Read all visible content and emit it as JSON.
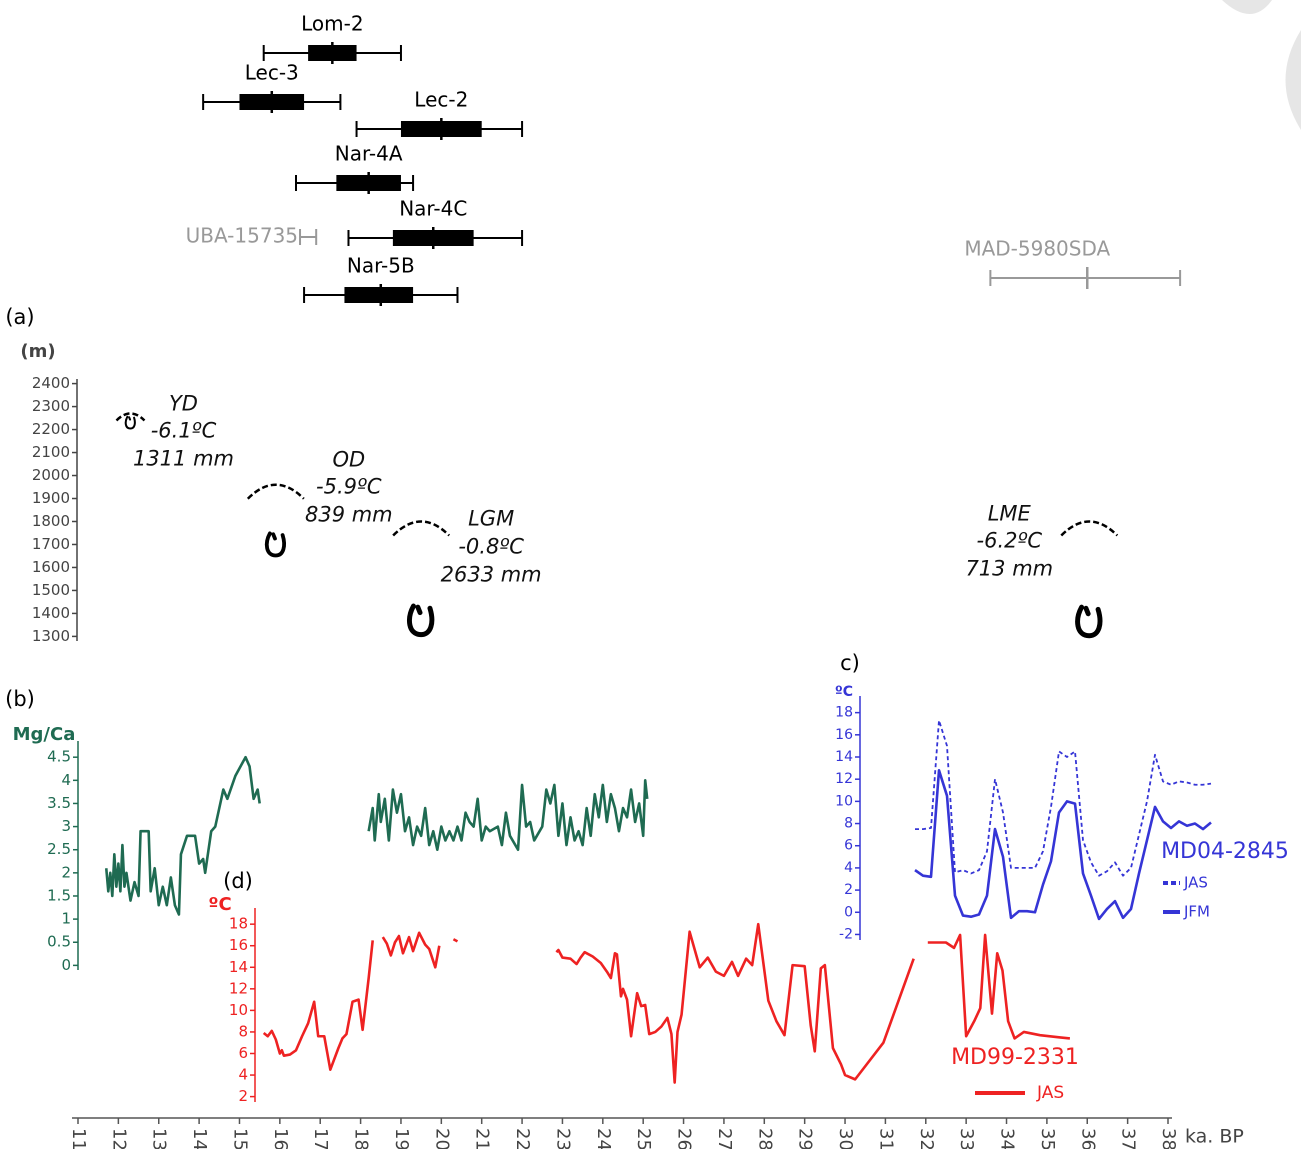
{
  "chart_data": [
    {
      "type": "boxplot",
      "items": [
        {
          "name": "Lom-2",
          "min": 15.6,
          "q1": 16.7,
          "median": 17.3,
          "q3": 17.9,
          "max": 19.0,
          "color": "#000000"
        },
        {
          "name": "Lec-3",
          "min": 14.1,
          "q1": 15.0,
          "median": 15.8,
          "q3": 16.6,
          "max": 17.5,
          "color": "#000000"
        },
        {
          "name": "Lec-2",
          "min": 17.9,
          "q1": 19.0,
          "median": 20.0,
          "q3": 21.0,
          "max": 22.0,
          "color": "#000000"
        },
        {
          "name": "Nar-4A",
          "min": 16.4,
          "q1": 17.4,
          "median": 18.2,
          "q3": 19.0,
          "max": 19.3,
          "color": "#000000"
        },
        {
          "name": "Nar-4C",
          "min": 17.7,
          "q1": 18.8,
          "median": 19.8,
          "q3": 20.8,
          "max": 22.0,
          "color": "#000000"
        },
        {
          "name": "Nar-5B",
          "min": 16.6,
          "q1": 17.6,
          "median": 18.5,
          "q3": 19.3,
          "max": 20.4,
          "color": "#000000"
        },
        {
          "name": "UBA-15735",
          "min": 16.5,
          "max": 16.9,
          "color": "#999999"
        },
        {
          "name": "MAD-5980SDA",
          "min": 33.6,
          "median": 36.0,
          "max": 38.3,
          "color": "#999999"
        }
      ]
    },
    {
      "type": "glacier",
      "label": "(a)",
      "ylabel": "(m)",
      "axis_color": "#444444",
      "ylim": [
        1280,
        2420
      ],
      "yticks": [
        1300,
        1400,
        1500,
        1600,
        1700,
        1800,
        1900,
        2000,
        2100,
        2200,
        2300,
        2400
      ],
      "items": [
        {
          "name": "YD",
          "temp": "-6.1ºC",
          "precip": "1311 mm",
          "age": 12.3,
          "ela": 2270,
          "front": 2230
        },
        {
          "name": "OD",
          "temp": "-5.9ºC",
          "precip": "839 mm",
          "age": 15.9,
          "ela": 1960,
          "front": 1700
        },
        {
          "name": "LGM",
          "temp": "-0.8ºC",
          "precip": "2633 mm",
          "age": 19.5,
          "ela": 1800,
          "front": 1370
        },
        {
          "name": "LME",
          "temp": "-6.2ºC",
          "precip": "713 mm",
          "age": 36.05,
          "ela": 1800,
          "front": 1365
        }
      ]
    },
    {
      "type": "line",
      "label": "(b)",
      "ylabel": "Mg/Ca",
      "axis_color": "#1f6b52",
      "color": "#1f6b52",
      "ylim": [
        -0.1,
        4.85
      ],
      "yticks": [
        0,
        0.5,
        1,
        1.5,
        2,
        2.5,
        3,
        3.5,
        4,
        4.5
      ],
      "x": [
        11.7,
        11.75,
        11.8,
        11.85,
        11.9,
        11.95,
        12.0,
        12.05,
        12.1,
        12.15,
        12.2,
        12.3,
        12.4,
        12.5,
        12.55,
        12.75,
        12.8,
        12.9,
        13.0,
        13.1,
        13.2,
        13.3,
        13.4,
        13.5,
        13.55,
        13.7,
        13.9,
        14.0,
        14.1,
        14.15,
        14.3,
        14.4,
        14.6,
        14.7,
        14.9,
        15.15,
        15.25,
        15.35,
        15.45,
        15.5,
        16.8,
        18.2,
        18.3,
        18.35,
        18.45,
        18.5,
        18.6,
        18.7,
        18.8,
        18.9,
        19.0,
        19.1,
        19.2,
        19.3,
        19.4,
        19.5,
        19.6,
        19.7,
        19.8,
        19.9,
        20.0,
        20.1,
        20.2,
        20.3,
        20.4,
        20.5,
        20.6,
        20.7,
        20.8,
        20.9,
        21.0,
        21.1,
        21.2,
        21.4,
        21.5,
        21.6,
        21.7,
        21.9,
        22.0,
        22.1,
        22.2,
        22.3,
        22.5,
        22.6,
        22.7,
        22.8,
        22.9,
        23.0,
        23.1,
        23.2,
        23.3,
        23.4,
        23.5,
        23.6,
        23.7,
        23.8,
        23.9,
        24.0,
        24.1,
        24.2,
        24.3,
        24.4,
        24.5,
        24.6,
        24.7,
        24.8,
        24.9,
        25.0,
        25.05,
        25.1
      ],
      "values": [
        2.1,
        1.6,
        2.0,
        1.5,
        2.4,
        1.7,
        2.2,
        1.6,
        2.6,
        1.7,
        2.0,
        1.4,
        1.8,
        1.5,
        2.9,
        2.9,
        1.6,
        2.1,
        1.3,
        1.7,
        1.3,
        1.9,
        1.3,
        1.1,
        2.4,
        2.8,
        2.8,
        2.2,
        2.3,
        2.0,
        2.9,
        3.0,
        3.8,
        3.6,
        4.1,
        4.5,
        4.3,
        3.6,
        3.8,
        3.5,
        null,
        2.9,
        3.4,
        2.7,
        3.7,
        3.1,
        3.6,
        2.7,
        3.8,
        3.3,
        3.7,
        2.9,
        3.2,
        2.6,
        3.0,
        2.8,
        3.4,
        2.6,
        2.9,
        2.5,
        3.0,
        2.7,
        2.9,
        2.7,
        3.0,
        2.7,
        3.3,
        3.1,
        3.0,
        3.6,
        2.7,
        3.0,
        2.9,
        3.0,
        2.6,
        3.3,
        2.8,
        2.5,
        3.9,
        3.0,
        3.1,
        2.7,
        3.0,
        3.8,
        3.5,
        3.9,
        2.8,
        3.5,
        2.6,
        3.2,
        2.7,
        2.9,
        2.6,
        3.4,
        2.8,
        3.7,
        3.2,
        3.9,
        3.1,
        3.7,
        3.4,
        2.9,
        3.4,
        3.2,
        3.8,
        3.1,
        3.5,
        2.8,
        4.0,
        3.6
      ]
    },
    {
      "type": "line",
      "label": "c)",
      "ylabel": "ºC",
      "title": "MD04-2845",
      "axis_color": "#3535d6",
      "ylim": [
        -2.5,
        19.5
      ],
      "yticks": [
        -2,
        0,
        2,
        4,
        6,
        8,
        10,
        12,
        14,
        16,
        18
      ],
      "series": [
        {
          "name": "JAS",
          "color": "#3535d6",
          "style": "dashed",
          "values": [
            7.5,
            7.5,
            7.6,
            17.3,
            15.0,
            3.6,
            3.8,
            3.5,
            3.8,
            5.5,
            12.0,
            9.0,
            4.0,
            4.0,
            4.0,
            4.0,
            5.5,
            9.5,
            14.5,
            14.0,
            14.5,
            6.5,
            4.5,
            3.3,
            3.7,
            4.5,
            3.3,
            4.0,
            7.0,
            10.0,
            14.2,
            11.8,
            11.5,
            11.8,
            11.7,
            11.5,
            11.5,
            11.6
          ]
        },
        {
          "name": "JFM",
          "color": "#3535d6",
          "style": "solid",
          "values": [
            3.8,
            3.3,
            3.2,
            12.8,
            10.5,
            1.5,
            -0.3,
            -0.4,
            -0.2,
            1.5,
            7.5,
            5.0,
            -0.5,
            0.1,
            0.1,
            0.0,
            2.5,
            4.6,
            9.0,
            10.0,
            9.8,
            3.5,
            1.5,
            -0.6,
            0.3,
            1.0,
            -0.5,
            0.3,
            3.5,
            6.5,
            9.5,
            8.2,
            7.6,
            8.2,
            7.8,
            8.0,
            7.5,
            8.1
          ]
        }
      ]
    },
    {
      "type": "line",
      "label": "(d)",
      "ylabel": "ºC",
      "title": "MD99-2331",
      "axis_color": "#ee2222",
      "xlabel": "ka. BP",
      "xlim": [
        11,
        38
      ],
      "xticks": [
        11,
        12,
        13,
        14,
        15,
        16,
        17,
        18,
        19,
        20,
        21,
        22,
        23,
        24,
        25,
        26,
        27,
        28,
        29,
        30,
        31,
        32,
        33,
        34,
        35,
        36,
        37,
        38
      ],
      "ylim": [
        1.5,
        19.5
      ],
      "yticks": [
        2,
        4,
        6,
        8,
        10,
        12,
        14,
        16,
        18
      ],
      "x": [
        15.6,
        15.7,
        15.8,
        15.9,
        16.0,
        16.05,
        16.1,
        16.25,
        16.4,
        16.55,
        16.7,
        16.85,
        16.95,
        17.1,
        17.25,
        17.45,
        17.55,
        17.65,
        17.8,
        17.95,
        18.05,
        18.2,
        18.3,
        18.45,
        18.55,
        18.65,
        18.75,
        18.85,
        18.95,
        19.05,
        19.2,
        19.3,
        19.45,
        19.6,
        19.7,
        19.85,
        19.95,
        20.15,
        20.3,
        20.4,
        21.5,
        22.85,
        22.9,
        23.0,
        23.2,
        23.35,
        23.45,
        23.55,
        23.75,
        23.95,
        24.1,
        24.2,
        24.3,
        24.35,
        24.45,
        24.5,
        24.6,
        24.7,
        24.85,
        24.95,
        25.05,
        25.15,
        25.3,
        25.45,
        25.6,
        25.7,
        25.78,
        25.85,
        25.95,
        26.15,
        26.4,
        26.6,
        26.8,
        27.0,
        27.2,
        27.35,
        27.55,
        27.7,
        27.85,
        28.1,
        28.3,
        28.5,
        28.7,
        29.0,
        29.15,
        29.25,
        29.4,
        29.5,
        29.7,
        29.9,
        30.0,
        30.25,
        30.95,
        31.7,
        31.9,
        32.05,
        32.5,
        32.7,
        32.85,
        33.0,
        33.2,
        33.35,
        33.47,
        33.64,
        33.77,
        33.9,
        34.04,
        34.2,
        34.43,
        34.83,
        35.3,
        35.57
      ],
      "series": [
        {
          "name": "JAS",
          "color": "#ee2222",
          "style": "solid",
          "values": [
            7.9,
            7.6,
            8.1,
            7.3,
            6.0,
            6.3,
            5.8,
            5.9,
            6.3,
            7.6,
            8.8,
            10.8,
            7.6,
            7.6,
            4.5,
            6.5,
            7.4,
            7.8,
            10.8,
            11.0,
            8.2,
            13.0,
            16.5,
            null,
            16.8,
            16.2,
            15.1,
            16.3,
            16.9,
            15.3,
            16.8,
            15.5,
            17.2,
            16.1,
            15.7,
            14.0,
            16.0,
            null,
            16.6,
            16.4,
            null,
            15.4,
            15.6,
            14.9,
            14.8,
            14.3,
            14.9,
            15.4,
            15.0,
            14.4,
            13.6,
            13.0,
            15.3,
            15.2,
            11.3,
            12.0,
            11.0,
            7.6,
            11.6,
            10.4,
            10.5,
            7.8,
            8.0,
            8.5,
            9.3,
            7.8,
            3.3,
            8.0,
            9.6,
            17.3,
            14.0,
            14.9,
            13.6,
            13.2,
            14.5,
            13.2,
            14.8,
            14.2,
            18.0,
            10.9,
            9.0,
            7.7,
            14.2,
            14.1,
            8.6,
            6.2,
            13.9,
            14.2,
            6.5,
            5.0,
            4.0,
            3.6,
            7.0,
            14.8,
            null,
            16.3,
            16.3,
            15.8,
            17.0,
            7.6,
            9.0,
            10.2,
            17.0,
            9.7,
            15.3,
            13.7,
            9.0,
            7.4,
            8.0,
            7.7,
            7.5,
            7.4
          ]
        }
      ]
    }
  ]
}
